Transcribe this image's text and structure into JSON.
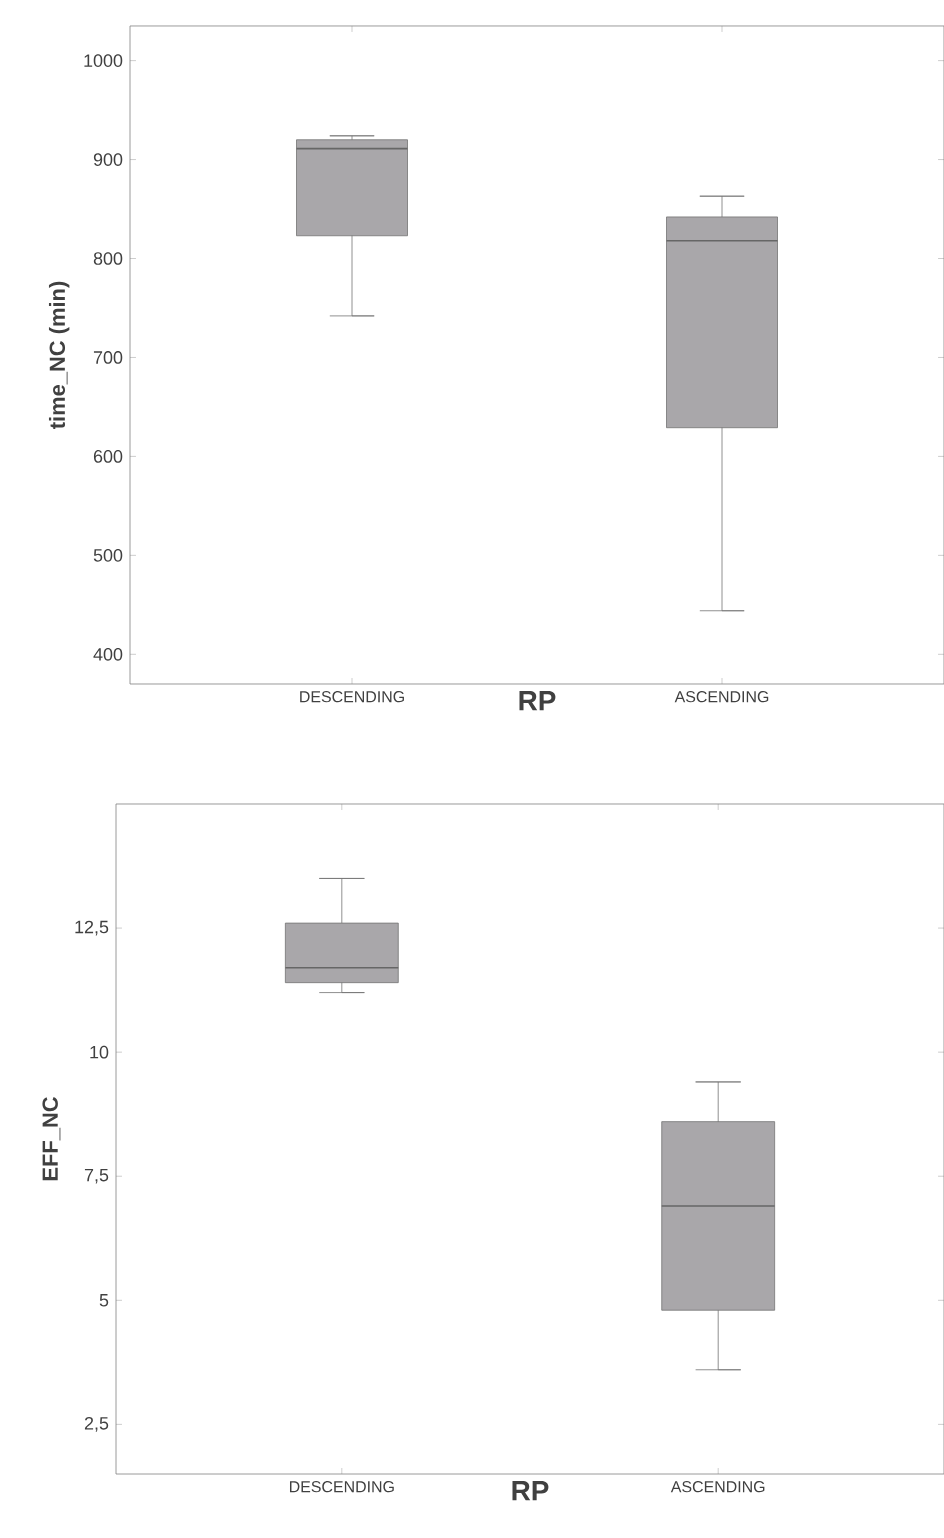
{
  "chart_data": [
    {
      "type": "box",
      "categories": [
        "DESCENDING",
        "ASCENDING"
      ],
      "xlabel": "RP",
      "ylabel": "time_NC (min)",
      "color": "#a9a7aa",
      "boxes": [
        {
          "low": 742,
          "q1": 823,
          "median": 911,
          "q3": 920,
          "high": 924
        },
        {
          "low": 444,
          "q1": 629,
          "median": 818,
          "q3": 842,
          "high": 863
        }
      ],
      "ylim": [
        370,
        1035
      ],
      "yticks": [
        400,
        500,
        600,
        700,
        800,
        900,
        1000
      ]
    },
    {
      "type": "box",
      "categories": [
        "DESCENDING",
        "ASCENDING"
      ],
      "xlabel": "RP",
      "ylabel": "EFF_NC",
      "color": "#a9a7aa",
      "boxes": [
        {
          "low": 11.2,
          "q1": 11.4,
          "median": 11.7,
          "q3": 12.6,
          "high": 13.5
        },
        {
          "low": 3.6,
          "q1": 4.8,
          "median": 6.9,
          "q3": 8.6,
          "high": 9.4
        }
      ],
      "ylim": [
        1.5,
        15
      ],
      "yticks": [
        {
          "value": 2.5,
          "label": "2,5"
        },
        5,
        {
          "value": 7.5,
          "label": "7,5"
        },
        10,
        {
          "value": 12.5,
          "label": "12,5"
        }
      ]
    }
  ]
}
